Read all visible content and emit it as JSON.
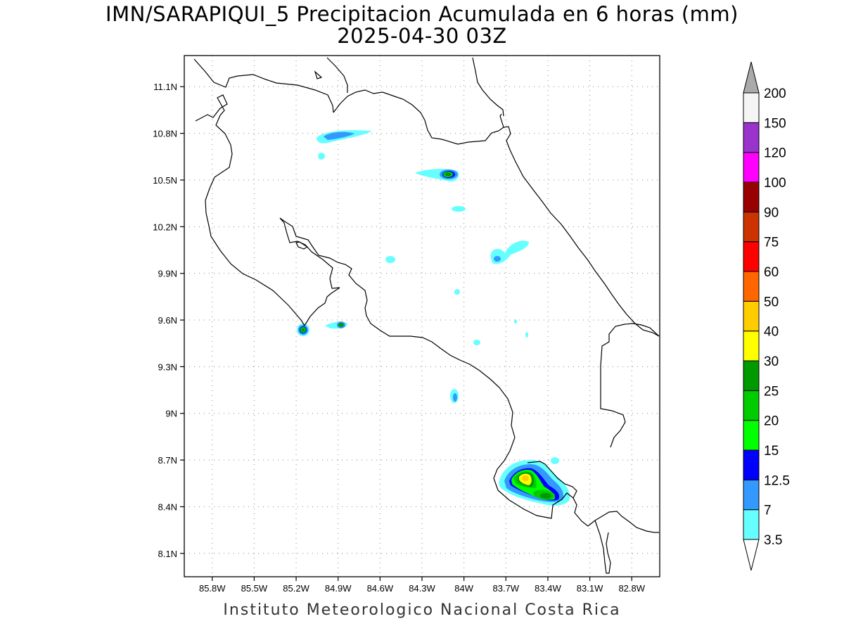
{
  "title": "IMN/SARAPIQUI_5 Precipitacion Acumulada en 6 horas (mm)",
  "subtitle": "2025-04-30 03Z",
  "footer": "Instituto Meteorologico Nacional Costa Rica",
  "map": {
    "lon_range": [
      -86.0,
      -82.6
    ],
    "lat_range": [
      7.95,
      11.3
    ],
    "lat_ticks": [
      {
        "value": 11.1,
        "label": "11.1N"
      },
      {
        "value": 10.8,
        "label": "10.8N"
      },
      {
        "value": 10.5,
        "label": "10.5N"
      },
      {
        "value": 10.2,
        "label": "10.2N"
      },
      {
        "value": 9.9,
        "label": "9.9N"
      },
      {
        "value": 9.6,
        "label": "9.6N"
      },
      {
        "value": 9.3,
        "label": "9.3N"
      },
      {
        "value": 9.0,
        "label": "9N"
      },
      {
        "value": 8.7,
        "label": "8.7N"
      },
      {
        "value": 8.4,
        "label": "8.4N"
      },
      {
        "value": 8.1,
        "label": "8.1N"
      }
    ],
    "lon_ticks": [
      {
        "value": -85.8,
        "label": "85.8W"
      },
      {
        "value": -85.5,
        "label": "85.5W"
      },
      {
        "value": -85.2,
        "label": "85.2W"
      },
      {
        "value": -84.9,
        "label": "84.9W"
      },
      {
        "value": -84.6,
        "label": "84.6W"
      },
      {
        "value": -84.3,
        "label": "84.3W"
      },
      {
        "value": -84.0,
        "label": "84W"
      },
      {
        "value": -83.7,
        "label": "83.7W"
      },
      {
        "value": -83.4,
        "label": "83.4W"
      },
      {
        "value": -83.1,
        "label": "83.1W"
      },
      {
        "value": -82.8,
        "label": "82.8W"
      }
    ],
    "grid": "dotted"
  },
  "colorbar": {
    "levels": [
      "3.5",
      "7",
      "12.5",
      "15",
      "20",
      "25",
      "30",
      "40",
      "50",
      "60",
      "75",
      "90",
      "100",
      "120",
      "150",
      "200"
    ],
    "colors": [
      "#66ffff",
      "#3399ff",
      "#0000ff",
      "#00ff00",
      "#00cc00",
      "#009900",
      "#ffff00",
      "#ffcc00",
      "#ff6600",
      "#ff0000",
      "#cc3300",
      "#990000",
      "#ff00ff",
      "#9933cc",
      "#f5f5f5"
    ],
    "over_color": "#aaaaaa",
    "under_color": "#ffffff"
  },
  "precip_cells": [
    {
      "lon": -84.87,
      "lat": 10.79,
      "max_mm": 7
    },
    {
      "lon": -84.05,
      "lat": 10.55,
      "max_mm": 25
    },
    {
      "lon": -84.0,
      "lat": 10.33,
      "max_mm": 3.5
    },
    {
      "lon": -83.55,
      "lat": 10.06,
      "max_mm": 7
    },
    {
      "lon": -84.41,
      "lat": 10.01,
      "max_mm": 3.5
    },
    {
      "lon": -85.13,
      "lat": 9.56,
      "max_mm": 25
    },
    {
      "lon": -84.88,
      "lat": 9.6,
      "max_mm": 25
    },
    {
      "lon": -84.01,
      "lat": 9.14,
      "max_mm": 7
    },
    {
      "lon": -83.48,
      "lat": 8.6,
      "max_mm": 40
    }
  ]
}
